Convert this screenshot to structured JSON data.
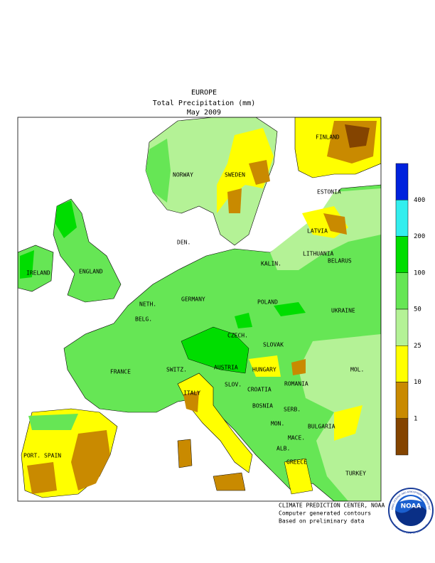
{
  "title": {
    "region": "EUROPE",
    "variable": "Total Precipitation (mm)",
    "period": "May 2009"
  },
  "countries": [
    "FINLAND",
    "NORWAY",
    "SWEDEN",
    "ESTONIA",
    "LATVIA",
    "LITHUANIA",
    "DEN.",
    "KALIN.",
    "IRELAND",
    "ENGLAND",
    "BELARUS",
    "NETH.",
    "GERMANY",
    "POLAND",
    "BELG.",
    "CZECH.",
    "UKRAINE",
    "SLOVAK",
    "FRANCE",
    "SWITZ.",
    "AUSTRIA",
    "HUNGARY",
    "MOL.",
    "ROMANIA",
    "SLOV.",
    "CROATIA",
    "ITALY",
    "BOSNIA",
    "SERB.",
    "MON.",
    "BULGARIA",
    "PORT.",
    "SPAIN",
    "MACE.",
    "ALB.",
    "GREECE",
    "TURKEY"
  ],
  "legend": {
    "colors": [
      "#0022dd",
      "#33eeee",
      "#00dd00",
      "#66e655",
      "#b4f296",
      "#ffff00",
      "#c98a00",
      "#844400"
    ],
    "labels": [
      400,
      200,
      100,
      50,
      25,
      10,
      1
    ]
  },
  "footer": [
    "CLIMATE PREDICTION CENTER, NOAA",
    "Computer generated contours",
    "Based on preliminary data"
  ],
  "logo": {
    "text": "NOAA",
    "ring_top": "NATIONAL OCEANIC AND ATMOSPHERIC ADMINISTRATION",
    "ring_bottom": "U.S. DEPARTMENT OF COMMERCE"
  }
}
